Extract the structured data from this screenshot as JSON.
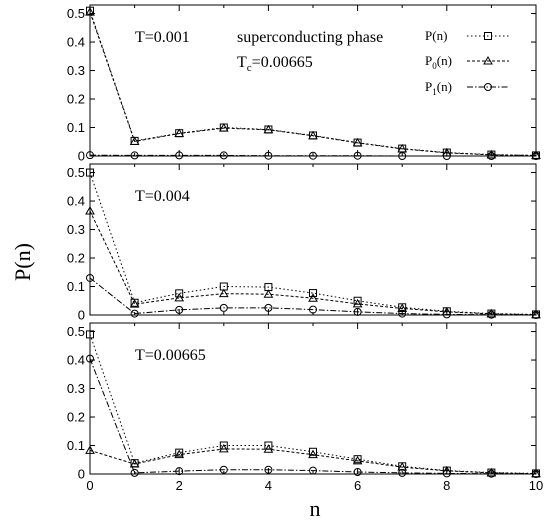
{
  "chart_data": {
    "type": "line",
    "xlabel": "n",
    "ylabel": "P(n)",
    "xlim": [
      0,
      10
    ],
    "ylim": [
      0,
      0.53
    ],
    "x_ticks": [
      "0",
      "2",
      "4",
      "6",
      "8",
      "10"
    ],
    "y_ticks": [
      "0",
      "0.1",
      "0.2",
      "0.3",
      "0.4",
      "0.5"
    ],
    "x": [
      0,
      1,
      2,
      3,
      4,
      5,
      6,
      7,
      8,
      9,
      10
    ],
    "legend": {
      "placement": "top-right of first panel",
      "entries": [
        {
          "name": "P(n)",
          "main": "P",
          "sub": "",
          "suffix": "(n)",
          "marker": "square",
          "dash": "1.5,2.5"
        },
        {
          "name": "P0(n)",
          "main": "P",
          "sub": "0",
          "suffix": "(n)",
          "marker": "triangle",
          "dash": "3,2"
        },
        {
          "name": "P1(n)",
          "main": "P",
          "sub": "1",
          "suffix": "(n)",
          "marker": "circle",
          "dash": "6,2,1.5,2"
        }
      ]
    },
    "panels": [
      {
        "label": "T=0.001",
        "note_line1": "superconducting phase",
        "note_line2_main": "T",
        "note_line2_sub": "c",
        "note_line2_rest": "=0.00665",
        "series": [
          {
            "name": "P(n)",
            "values": [
              0.51,
              0.053,
              0.08,
              0.1,
              0.093,
              0.072,
              0.047,
              0.026,
              0.012,
              0.005,
              0.002
            ]
          },
          {
            "name": "P0(n)",
            "values": [
              0.505,
              0.051,
              0.079,
              0.098,
              0.092,
              0.071,
              0.046,
              0.025,
              0.011,
              0.004,
              0.002
            ]
          },
          {
            "name": "P1(n)",
            "values": [
              0.003,
              0.002,
              0.002,
              0.002,
              0.001,
              0.001,
              0.001,
              0.0,
              0.0,
              0.0,
              0.0
            ]
          }
        ]
      },
      {
        "label": "T=0.004",
        "series": [
          {
            "name": "P(n)",
            "values": [
              0.5,
              0.043,
              0.076,
              0.1,
              0.098,
              0.077,
              0.05,
              0.027,
              0.013,
              0.005,
              0.002
            ]
          },
          {
            "name": "P0(n)",
            "values": [
              0.365,
              0.038,
              0.06,
              0.075,
              0.073,
              0.059,
              0.039,
              0.023,
              0.011,
              0.004,
              0.001
            ]
          },
          {
            "name": "P1(n)",
            "values": [
              0.13,
              0.005,
              0.018,
              0.025,
              0.025,
              0.019,
              0.011,
              0.005,
              0.002,
              0.001,
              0.0
            ]
          }
        ]
      },
      {
        "label": "T=0.00665",
        "series": [
          {
            "name": "P(n)",
            "values": [
              0.49,
              0.038,
              0.075,
              0.1,
              0.1,
              0.078,
              0.052,
              0.027,
              0.012,
              0.005,
              0.002
            ]
          },
          {
            "name": "P0(n)",
            "values": [
              0.083,
              0.035,
              0.068,
              0.088,
              0.087,
              0.068,
              0.046,
              0.024,
              0.011,
              0.004,
              0.001
            ]
          },
          {
            "name": "P1(n)",
            "values": [
              0.405,
              0.004,
              0.01,
              0.015,
              0.015,
              0.012,
              0.007,
              0.004,
              0.002,
              0.001,
              0.0
            ]
          }
        ]
      }
    ]
  }
}
